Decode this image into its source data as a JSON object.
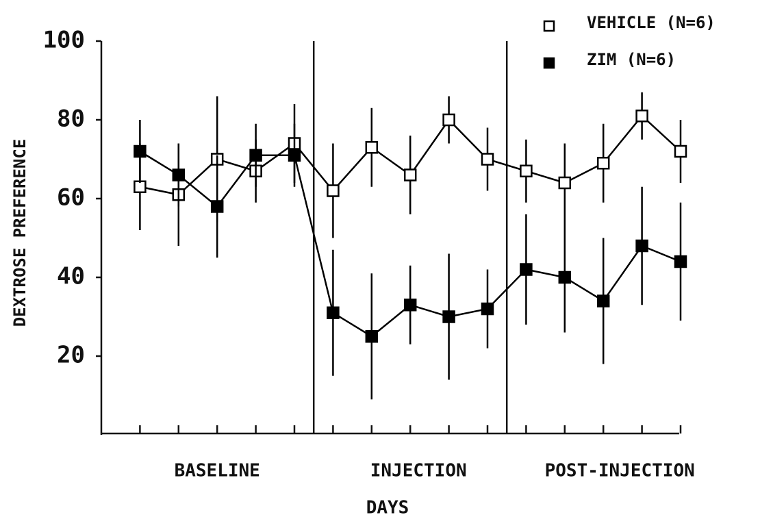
{
  "chart_data": {
    "type": "line",
    "ylabel": "DEXTROSE PREFERENCE",
    "xlabel": "DAYS",
    "x_groups": [
      "BASELINE",
      "INJECTION",
      "POST-INJECTION"
    ],
    "categories": [
      null,
      null,
      null,
      null,
      null,
      null,
      null,
      null,
      null,
      null,
      null,
      null,
      null,
      null,
      null
    ],
    "ylim": [
      0,
      100
    ],
    "yticks": [
      20,
      40,
      60,
      80,
      100
    ],
    "legend": "upper right",
    "series": [
      {
        "name": "VEHICLE (N=6)",
        "color": "#000000",
        "marker": "open-square",
        "values": [
          63,
          61,
          70,
          67,
          74,
          62,
          73,
          66,
          80,
          70,
          67,
          64,
          69,
          81,
          72
        ],
        "errors": [
          11,
          13,
          16,
          8,
          10,
          12,
          10,
          10,
          6,
          8,
          8,
          10,
          10,
          6,
          8
        ]
      },
      {
        "name": "ZIM (N=6)",
        "color": "#000000",
        "marker": "filled-square",
        "values": [
          72,
          66,
          58,
          71,
          71,
          31,
          25,
          33,
          30,
          32,
          42,
          40,
          34,
          48,
          44
        ],
        "errors": [
          8,
          8,
          13,
          8,
          8,
          16,
          16,
          10,
          16,
          10,
          14,
          14,
          16,
          15,
          15
        ]
      }
    ]
  }
}
